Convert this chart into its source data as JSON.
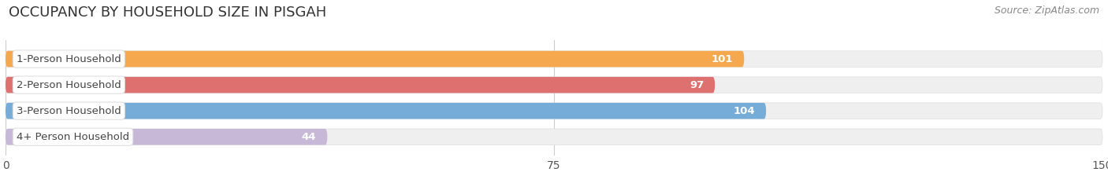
{
  "title": "OCCUPANCY BY HOUSEHOLD SIZE IN PISGAH",
  "source": "Source: ZipAtlas.com",
  "categories": [
    "1-Person Household",
    "2-Person Household",
    "3-Person Household",
    "4+ Person Household"
  ],
  "values": [
    101,
    97,
    104,
    44
  ],
  "bar_colors": [
    "#f5a84d",
    "#df7070",
    "#75acd8",
    "#c8b8d8"
  ],
  "xlim": [
    0,
    150
  ],
  "xticks": [
    0,
    75,
    150
  ],
  "background_color": "#ffffff",
  "bar_bg_color": "#efefef",
  "bar_height": 0.62,
  "value_label_color": "#ffffff",
  "cat_label_color": "#444444",
  "title_fontsize": 13,
  "source_fontsize": 9,
  "tick_fontsize": 10,
  "cat_fontsize": 9.5,
  "val_fontsize": 9.5
}
